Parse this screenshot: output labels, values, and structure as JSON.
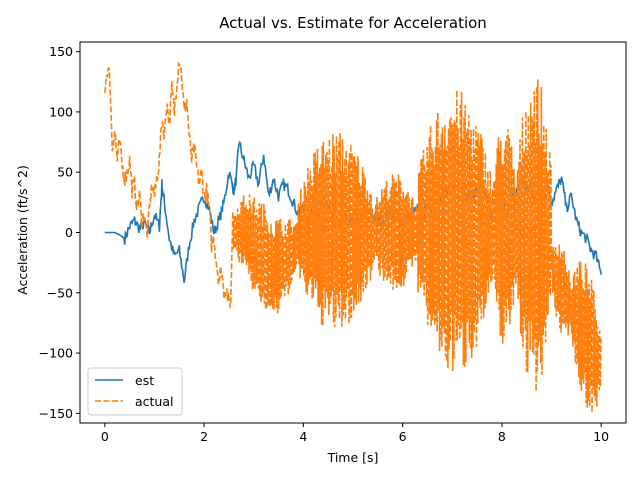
{
  "chart_data": {
    "type": "line",
    "title": "Actual vs. Estimate for Acceleration",
    "xlabel": "Time [s]",
    "ylabel": "Acceleration (ft/s^2)",
    "xlim": [
      -0.5,
      10.5
    ],
    "ylim": [
      -158,
      158
    ],
    "xticks": [
      0,
      2,
      4,
      6,
      8,
      10
    ],
    "yticks": [
      -150,
      -100,
      -50,
      0,
      50,
      100,
      150
    ],
    "grid": false,
    "legend": {
      "placement": "lower-left",
      "entries": [
        "est",
        "actual"
      ]
    },
    "series": [
      {
        "name": "est",
        "color": "#1f77b4",
        "style": "solid",
        "x": [
          0.0,
          0.2,
          0.3,
          0.4,
          0.5,
          0.6,
          0.7,
          0.8,
          0.9,
          1.0,
          1.1,
          1.15,
          1.2,
          1.3,
          1.4,
          1.5,
          1.6,
          1.7,
          1.8,
          1.9,
          2.0,
          2.1,
          2.2,
          2.3,
          2.4,
          2.5,
          2.6,
          2.65,
          2.7,
          2.8,
          2.9,
          3.0,
          3.1,
          3.2,
          3.3,
          3.4,
          3.5,
          3.6,
          3.7,
          3.8,
          3.9,
          4.0,
          4.1,
          4.2,
          4.3,
          4.4,
          4.5,
          4.6,
          4.7,
          4.8,
          4.9,
          5.0,
          5.1,
          5.2,
          5.3,
          5.4,
          5.5,
          5.6,
          5.7,
          5.8,
          5.9,
          6.0,
          6.1,
          6.2,
          6.3,
          6.4,
          6.5,
          6.6,
          6.7,
          6.8,
          6.9,
          7.0,
          7.1,
          7.2,
          7.3,
          7.4,
          7.5,
          7.6,
          7.7,
          7.8,
          7.9,
          8.0,
          8.1,
          8.2,
          8.3,
          8.4,
          8.5,
          8.6,
          8.7,
          8.8,
          8.9,
          9.0,
          9.1,
          9.2,
          9.3,
          9.4,
          9.5,
          9.6,
          9.7,
          9.8,
          9.9,
          10.0
        ],
        "y": [
          0,
          0,
          -2,
          -5,
          5,
          10,
          3,
          8,
          0,
          15,
          5,
          40,
          25,
          -5,
          -20,
          -15,
          -40,
          -10,
          10,
          20,
          30,
          20,
          0,
          10,
          25,
          50,
          35,
          45,
          75,
          60,
          45,
          55,
          40,
          65,
          30,
          45,
          30,
          40,
          35,
          25,
          15,
          20,
          0,
          30,
          15,
          5,
          20,
          10,
          0,
          15,
          5,
          10,
          0,
          15,
          20,
          10,
          15,
          5,
          20,
          10,
          15,
          5,
          10,
          15,
          20,
          10,
          25,
          15,
          20,
          35,
          30,
          40,
          35,
          45,
          30,
          25,
          40,
          35,
          30,
          10,
          20,
          25,
          15,
          30,
          35,
          45,
          35,
          40,
          20,
          30,
          45,
          25,
          35,
          45,
          20,
          30,
          10,
          0,
          -5,
          -15,
          -20,
          -35
        ]
      },
      {
        "name": "actual",
        "color": "#ff7f0e",
        "style": "dashed",
        "segments": [
          {
            "x": [
              0.0,
              0.05,
              0.1,
              0.15,
              0.2,
              0.25,
              0.3,
              0.35,
              0.4,
              0.45,
              0.5,
              0.55,
              0.6,
              0.65,
              0.7,
              0.75,
              0.8,
              0.85,
              0.9,
              0.95,
              1.0,
              1.05,
              1.1,
              1.15,
              1.2,
              1.25,
              1.3,
              1.35,
              1.4,
              1.45,
              1.5,
              1.55,
              1.6,
              1.65,
              1.7,
              1.75,
              1.8,
              1.85,
              1.9,
              1.95,
              2.0,
              2.05,
              2.1,
              2.15,
              2.2,
              2.25,
              2.3,
              2.35,
              2.4,
              2.45,
              2.5,
              2.55
            ],
            "y": [
              120,
              135,
              130,
              70,
              85,
              60,
              75,
              55,
              45,
              50,
              60,
              35,
              40,
              20,
              30,
              10,
              15,
              -5,
              20,
              40,
              30,
              45,
              60,
              95,
              80,
              110,
              90,
              120,
              100,
              125,
              145,
              130,
              100,
              110,
              80,
              60,
              70,
              55,
              40,
              50,
              30,
              35,
              20,
              -10,
              -5,
              -25,
              -40,
              -30,
              -50,
              -45,
              -60,
              -55
            ]
          },
          {
            "oscillation": true,
            "center": [
              [
                2.6,
                0
              ],
              [
                2.8,
                0
              ],
              [
                3.0,
                -10
              ],
              [
                3.2,
                -20
              ],
              [
                3.4,
                -30
              ],
              [
                3.6,
                -25
              ],
              [
                3.8,
                -15
              ],
              [
                4.0,
                0
              ]
            ],
            "ranges": [
              [
                2.6,
                3.9,
                45
              ],
              [
                3.9,
                5.4,
                85
              ],
              [
                5.4,
                6.3,
                50
              ],
              [
                6.3,
                7.8,
                120
              ],
              [
                7.8,
                8.3,
                95
              ],
              [
                8.3,
                9.0,
                135
              ],
              [
                9.0,
                9.4,
                40
              ],
              [
                9.4,
                10.0,
                60
              ]
            ]
          }
        ]
      }
    ]
  }
}
